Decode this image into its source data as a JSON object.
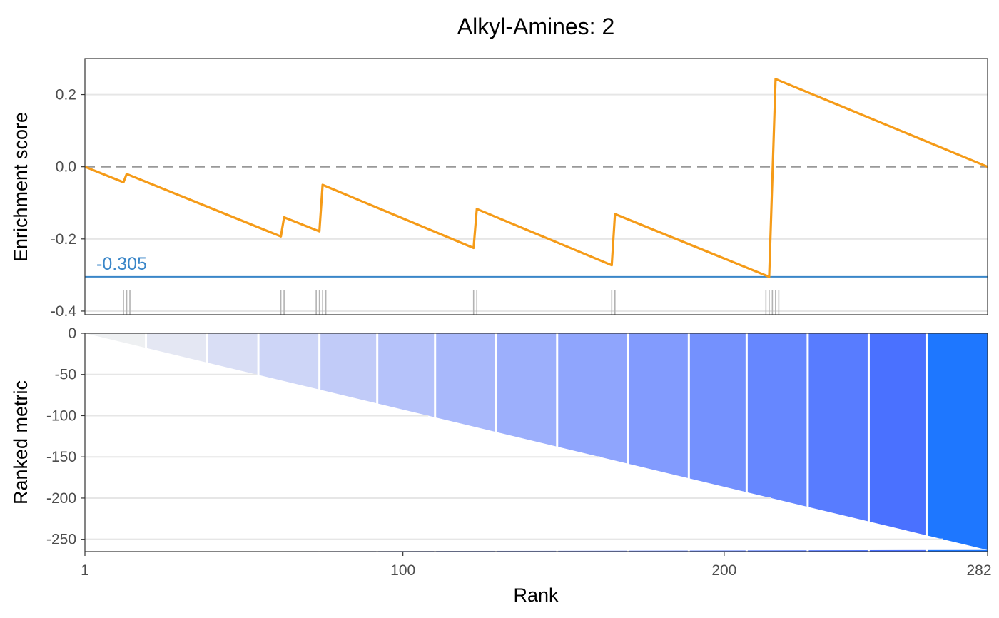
{
  "chart_data": [
    {
      "type": "line",
      "title": "Alkyl-Amines: 2",
      "xlabel": "",
      "ylabel": "Enrichment score",
      "xlim": [
        1,
        282
      ],
      "ylim": [
        -0.41,
        0.3
      ],
      "y_ticks": [
        "0.2",
        "0.0",
        "-0.2",
        "-0.4"
      ],
      "y_tick_values": [
        0.2,
        0.0,
        -0.2,
        -0.4
      ],
      "grid": true,
      "series": [
        {
          "x": [
            1,
            13,
            14,
            62,
            63,
            74,
            75,
            122,
            123,
            165,
            166,
            214,
            216,
            282
          ],
          "values": [
            0.0,
            -0.043,
            -0.02,
            -0.193,
            -0.14,
            -0.179,
            -0.05,
            -0.225,
            -0.117,
            -0.273,
            -0.131,
            -0.305,
            0.243,
            0.0
          ],
          "color": "#F59B18"
        }
      ],
      "zero_line": {
        "y": 0.0,
        "style": "dashed",
        "color": "#999999"
      },
      "min_line": {
        "y": -0.305,
        "label": "-0.305",
        "color": "#3A86C8"
      },
      "hit_ranks": [
        13,
        14,
        15,
        62,
        63,
        73,
        74,
        75,
        76,
        122,
        123,
        165,
        166,
        213,
        214,
        215,
        216,
        217
      ]
    },
    {
      "type": "area",
      "xlabel": "Rank",
      "ylabel": "Ranked metric",
      "xlim": [
        1,
        282
      ],
      "ylim": [
        -265,
        0
      ],
      "x_ticks": [
        "1",
        "100",
        "200",
        "282"
      ],
      "x_tick_values": [
        1,
        100,
        200,
        282
      ],
      "y_ticks": [
        "0",
        "-50",
        "-100",
        "-150",
        "-200",
        "-250"
      ],
      "y_tick_values": [
        0,
        -50,
        -100,
        -150,
        -200,
        -250
      ],
      "grid": true,
      "series": [
        {
          "x": [
            1,
            282
          ],
          "values": [
            0,
            -263
          ]
        }
      ],
      "band_boundaries": [
        20,
        39,
        55,
        74,
        92,
        110,
        129,
        148,
        170,
        189,
        207,
        226,
        245,
        263
      ],
      "band_colors": [
        "#EEF0F2",
        "#E4E7F3",
        "#D9DEF5",
        "#CDD5F7",
        "#C1CBF8",
        "#B5C2FA",
        "#A8B8FB",
        "#9CAFFC",
        "#8FA5FD",
        "#829BFE",
        "#7491FE",
        "#6687FF",
        "#587CFF",
        "#4A71FF",
        "#1E77FF"
      ]
    }
  ]
}
